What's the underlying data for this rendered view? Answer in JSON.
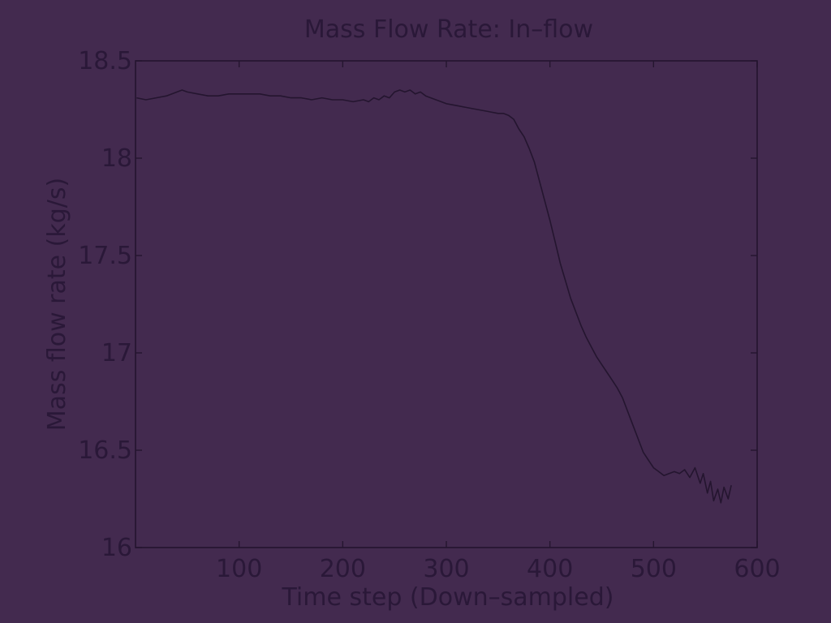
{
  "chart_data": {
    "type": "line",
    "title": "Mass Flow Rate: In–flow",
    "xlabel": "Time step (Down–sampled)",
    "ylabel": "Mass flow rate (kg/s)",
    "xlim": [
      0,
      600
    ],
    "ylim": [
      16,
      18.5
    ],
    "xticks": [
      100,
      200,
      300,
      400,
      500,
      600
    ],
    "xtick_labels": [
      "100",
      "200",
      "300",
      "400",
      "500",
      "600"
    ],
    "yticks": [
      16,
      16.5,
      17,
      17.5,
      18,
      18.5
    ],
    "ytick_labels": [
      "16",
      "16.5",
      "17",
      "17.5",
      "18",
      "18.5"
    ],
    "grid": false,
    "colors": {
      "background": "#432a4f",
      "line": "#24152f",
      "text": "#2a1838"
    },
    "series": [
      {
        "x": [
          1,
          10,
          20,
          30,
          40,
          45,
          50,
          60,
          70,
          80,
          90,
          100,
          110,
          120,
          130,
          140,
          150,
          160,
          170,
          180,
          190,
          200,
          210,
          220,
          225,
          230,
          235,
          240,
          245,
          250,
          255,
          260,
          265,
          270,
          275,
          280,
          285,
          290,
          295,
          300,
          310,
          320,
          330,
          340,
          350,
          355,
          360,
          365,
          370,
          375,
          380,
          385,
          390,
          395,
          400,
          405,
          410,
          415,
          420,
          425,
          430,
          435,
          440,
          445,
          450,
          455,
          460,
          465,
          470,
          475,
          480,
          485,
          490,
          495,
          500,
          505,
          510,
          515,
          520,
          525,
          530,
          535,
          540,
          545,
          548,
          552,
          555,
          558,
          562,
          565,
          568,
          572,
          575
        ],
        "y": [
          18.31,
          18.3,
          18.31,
          18.32,
          18.34,
          18.35,
          18.34,
          18.33,
          18.32,
          18.32,
          18.33,
          18.33,
          18.33,
          18.33,
          18.32,
          18.32,
          18.31,
          18.31,
          18.3,
          18.31,
          18.3,
          18.3,
          18.29,
          18.3,
          18.29,
          18.31,
          18.3,
          18.32,
          18.31,
          18.34,
          18.35,
          18.34,
          18.35,
          18.33,
          18.34,
          18.32,
          18.31,
          18.3,
          18.29,
          18.28,
          18.27,
          18.26,
          18.25,
          18.24,
          18.23,
          18.23,
          18.22,
          18.2,
          18.15,
          18.11,
          18.05,
          17.98,
          17.88,
          17.78,
          17.68,
          17.57,
          17.46,
          17.37,
          17.28,
          17.21,
          17.14,
          17.08,
          17.03,
          16.98,
          16.94,
          16.9,
          16.86,
          16.82,
          16.77,
          16.7,
          16.63,
          16.56,
          16.49,
          16.45,
          16.41,
          16.39,
          16.37,
          16.38,
          16.39,
          16.38,
          16.4,
          16.36,
          16.41,
          16.33,
          16.38,
          16.28,
          16.34,
          16.24,
          16.3,
          16.23,
          16.31,
          16.25,
          16.32
        ]
      }
    ]
  }
}
